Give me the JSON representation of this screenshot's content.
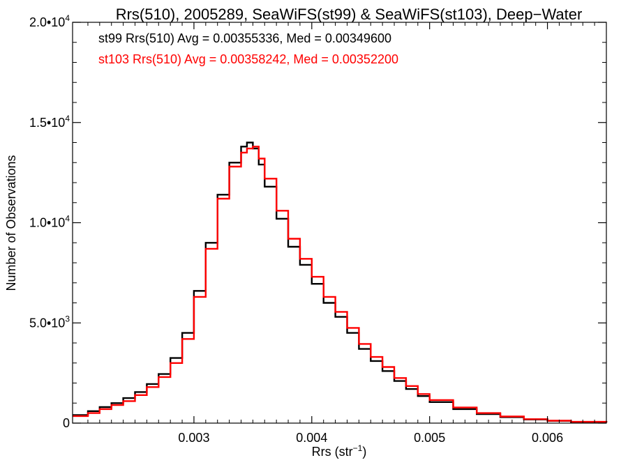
{
  "chart_data": {
    "type": "line",
    "step": true,
    "title": "Rrs(510), 2005289, SeaWiFS(st99) & SeaWiFS(st103), Deep−Water",
    "xlabel": "Rrs (str",
    "xlabel_sup": "−1",
    "xlabel_close": ")",
    "ylabel": "Number of Observations",
    "xlim": [
      0.00197,
      0.0065
    ],
    "ylim": [
      0,
      20000
    ],
    "x_ticks": [
      {
        "value": 0.003,
        "label": "0.003"
      },
      {
        "value": 0.004,
        "label": "0.004"
      },
      {
        "value": 0.005,
        "label": "0.005"
      },
      {
        "value": 0.006,
        "label": "0.006"
      }
    ],
    "y_ticks": [
      {
        "value": 0,
        "mantissa": "0",
        "exp": ""
      },
      {
        "value": 5000,
        "mantissa": "5.0•10",
        "exp": "3"
      },
      {
        "value": 10000,
        "mantissa": "1.0•10",
        "exp": "4"
      },
      {
        "value": 15000,
        "mantissa": "1.5•10",
        "exp": "4"
      },
      {
        "value": 20000,
        "mantissa": "2.0•10",
        "exp": "4"
      }
    ],
    "annotations": [
      {
        "text": "st99 Rrs(510) Avg = 0.00355336, Med = 0.00349600",
        "color": "#000000"
      },
      {
        "text": "st103 Rrs(510) Avg = 0.00358242, Med = 0.00352200",
        "color": "#ff0000"
      }
    ],
    "grid": false,
    "legend": "none",
    "series": [
      {
        "color": "#000000",
        "x": [
          0.00197,
          0.0021,
          0.0022,
          0.0023,
          0.0024,
          0.0025,
          0.0026,
          0.0027,
          0.0028,
          0.0029,
          0.003,
          0.0031,
          0.0032,
          0.0033,
          0.0034,
          0.00345,
          0.0035,
          0.00355,
          0.0036,
          0.0037,
          0.0038,
          0.0039,
          0.004,
          0.0041,
          0.0042,
          0.0043,
          0.0044,
          0.0045,
          0.0046,
          0.0047,
          0.0048,
          0.0049,
          0.005,
          0.0052,
          0.0054,
          0.0056,
          0.0058,
          0.006,
          0.0062,
          0.0065
        ],
        "y": [
          400,
          600,
          800,
          1000,
          1250,
          1550,
          1950,
          2450,
          3250,
          4500,
          6600,
          9000,
          11400,
          13000,
          13800,
          14000,
          13700,
          12900,
          11800,
          10200,
          8800,
          7900,
          6950,
          6000,
          5300,
          4500,
          3700,
          3100,
          2600,
          2100,
          1700,
          1350,
          1050,
          700,
          450,
          300,
          180,
          110,
          60,
          30
        ]
      },
      {
        "color": "#ff0000",
        "x": [
          0.00197,
          0.0021,
          0.0022,
          0.0023,
          0.0024,
          0.0025,
          0.0026,
          0.0027,
          0.0028,
          0.0029,
          0.003,
          0.0031,
          0.0032,
          0.0033,
          0.0034,
          0.00345,
          0.0035,
          0.00355,
          0.0036,
          0.0037,
          0.0038,
          0.0039,
          0.004,
          0.0041,
          0.0042,
          0.0043,
          0.0044,
          0.0045,
          0.0046,
          0.0047,
          0.0048,
          0.0049,
          0.005,
          0.0052,
          0.0054,
          0.0056,
          0.0058,
          0.006,
          0.0062,
          0.0065
        ],
        "y": [
          350,
          500,
          700,
          900,
          1100,
          1400,
          1800,
          2300,
          3000,
          4200,
          6300,
          8700,
          11200,
          12800,
          13500,
          13700,
          13800,
          13200,
          12200,
          10600,
          9200,
          8200,
          7300,
          6300,
          5550,
          4750,
          3950,
          3300,
          2800,
          2250,
          1850,
          1450,
          1150,
          780,
          500,
          330,
          200,
          120,
          65,
          30
        ]
      }
    ]
  }
}
